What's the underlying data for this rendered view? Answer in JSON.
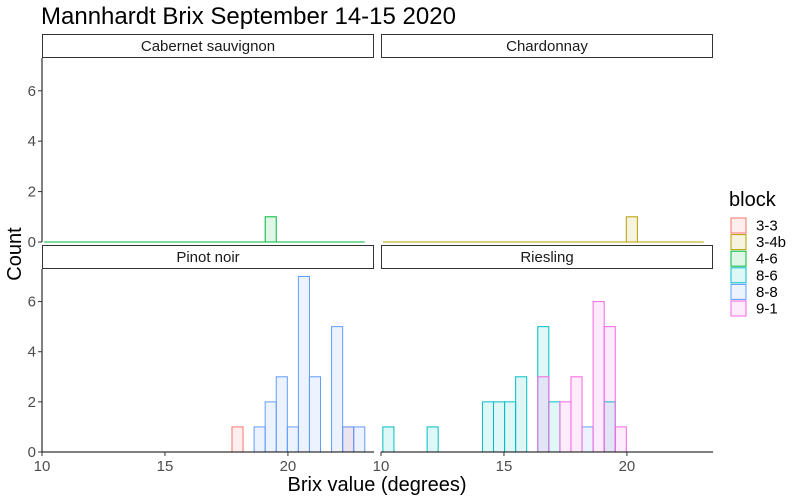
{
  "chart_data": {
    "type": "histogram",
    "title": "Mannhardt Brix September 14-15 2020",
    "xlabel": "Brix value (degrees)",
    "ylabel": "Count",
    "xlim": [
      10,
      23.5
    ],
    "ylim": [
      0,
      7.3
    ],
    "x_ticks": [
      10,
      15,
      20
    ],
    "y_ticks": [
      0,
      2,
      4,
      6
    ],
    "bin_width": 0.45,
    "bin_start": 10.075,
    "bin_count": 29,
    "grid": false,
    "legend_position": "right",
    "legend": {
      "title": "block",
      "entries": [
        {
          "label": "3-3",
          "color": "#F8766D"
        },
        {
          "label": "3-4b",
          "color": "#B79F00"
        },
        {
          "label": "4-6",
          "color": "#00BA38"
        },
        {
          "label": "8-6",
          "color": "#00BFC4"
        },
        {
          "label": "8-8",
          "color": "#619CFF"
        },
        {
          "label": "9-1",
          "color": "#F564E3"
        }
      ]
    },
    "fill_opacity": 0.12,
    "panels": [
      {
        "name": "Cabernet sauvignon",
        "series": [
          {
            "block": "4-6",
            "counts": [
              0,
              0,
              0,
              0,
              0,
              0,
              0,
              0,
              0,
              0,
              0,
              0,
              0,
              0,
              0,
              0,
              0,
              0,
              0,
              0,
              1,
              0,
              0,
              0,
              0,
              0,
              0,
              0,
              0
            ]
          }
        ]
      },
      {
        "name": "Chardonnay",
        "series": [
          {
            "block": "3-4b",
            "counts": [
              0,
              0,
              0,
              0,
              0,
              0,
              0,
              0,
              0,
              0,
              0,
              0,
              0,
              0,
              0,
              0,
              0,
              0,
              0,
              0,
              0,
              0,
              1,
              0,
              0,
              0,
              0,
              0,
              0
            ]
          }
        ]
      },
      {
        "name": "Pinot noir",
        "series": [
          {
            "block": "3-3",
            "counts": [
              0,
              0,
              0,
              0,
              0,
              0,
              0,
              0,
              0,
              0,
              0,
              0,
              0,
              0,
              0,
              0,
              0,
              1,
              0,
              0,
              0,
              0,
              0,
              0,
              0,
              0,
              0,
              1,
              0
            ]
          },
          {
            "block": "8-8",
            "counts": [
              0,
              0,
              0,
              0,
              0,
              0,
              0,
              0,
              0,
              0,
              0,
              0,
              0,
              0,
              0,
              0,
              0,
              0,
              0,
              1,
              2,
              3,
              1,
              7,
              3,
              0,
              5,
              1,
              1
            ]
          }
        ]
      },
      {
        "name": "Riesling",
        "series": [
          {
            "block": "8-6",
            "counts": [
              1,
              0,
              0,
              0,
              1,
              0,
              0,
              0,
              0,
              2,
              2,
              2,
              3,
              0,
              5,
              2,
              0,
              0,
              0,
              0,
              2,
              0,
              0,
              0,
              0,
              0,
              0,
              0,
              0
            ]
          },
          {
            "block": "8-8",
            "counts": [
              0,
              0,
              0,
              0,
              0,
              0,
              0,
              0,
              0,
              0,
              0,
              0,
              0,
              0,
              0,
              0,
              0,
              0,
              1,
              0,
              0,
              0,
              0,
              0,
              0,
              0,
              0,
              0,
              0
            ]
          },
          {
            "block": "9-1",
            "counts": [
              0,
              0,
              0,
              0,
              0,
              0,
              0,
              0,
              0,
              0,
              0,
              0,
              0,
              0,
              3,
              0,
              2,
              3,
              0,
              6,
              5,
              1,
              0,
              0,
              0,
              0,
              0,
              0,
              0
            ]
          }
        ]
      }
    ]
  }
}
